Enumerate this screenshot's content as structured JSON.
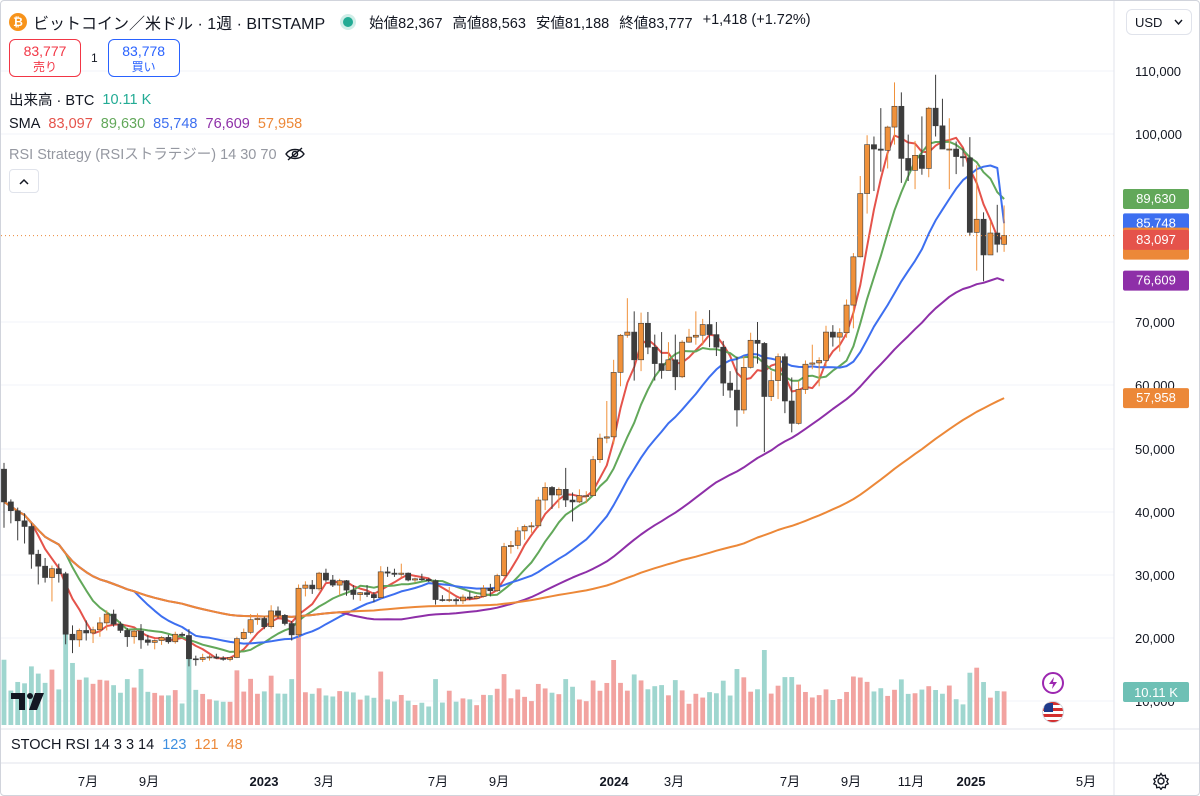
{
  "header": {
    "coin_icon_glyph": "₿",
    "title": "ビットコイン／米ドル · 1週 · BITSTAMP",
    "open_label": "始値",
    "open": "82,367",
    "high_label": "高値",
    "high": "88,563",
    "low_label": "安値",
    "low": "81,188",
    "close_label": "終値",
    "close": "83,777",
    "change": "+1,418 (+1.72%)"
  },
  "trade": {
    "sell_price": "83,777",
    "sell_label": "売り",
    "spread": "1",
    "buy_price": "83,778",
    "buy_label": "買い"
  },
  "currency": {
    "label": "USD"
  },
  "legend": {
    "volume_label": "出来高 · BTC",
    "volume_value": "10.11 K",
    "sma_label": "SMA",
    "sma_values": [
      "83,097",
      "89,630",
      "85,748",
      "76,609",
      "57,958"
    ],
    "rsi_label": "RSI Strategy (RSIストラテジー) 14 30 70",
    "stoch_label": "STOCH RSI 14 3 3 14",
    "stoch_values": [
      "123",
      "121",
      "48"
    ]
  },
  "colors": {
    "up": "#f0913a",
    "down": "#3c3c3c",
    "sma5": "#e5534b",
    "sma10": "#62a85a",
    "sma20": "#3d6ff0",
    "sma50": "#8e2fa8",
    "sma100": "#ec8838",
    "vol_up": "#f2a3a0",
    "vol_down": "#9fd6cf"
  },
  "chart_data": {
    "type": "candlestick",
    "symbol": "BTC/USD",
    "interval": "1W",
    "exchange": "BITSTAMP",
    "y_axis": {
      "labels": [
        "110,000",
        "100,000",
        "70,000",
        "60,000",
        "50,000",
        "40,000",
        "30,000",
        "20,000",
        "10,000"
      ],
      "ylim": [
        8000,
        115000
      ]
    },
    "x_axis": {
      "labels": [
        "7月",
        "9月",
        "2023",
        "3月",
        "7月",
        "9月",
        "2024",
        "3月",
        "7月",
        "9月",
        "11月",
        "2025",
        "5月"
      ]
    },
    "candles": [
      [
        46800,
        47800,
        37500,
        41600
      ],
      [
        41600,
        42000,
        38200,
        40200
      ],
      [
        40200,
        40700,
        35500,
        38600
      ],
      [
        38600,
        39800,
        35000,
        37700
      ],
      [
        37700,
        38200,
        31000,
        33300
      ],
      [
        33300,
        34000,
        28500,
        31400
      ],
      [
        31400,
        32700,
        28800,
        29600
      ],
      [
        29600,
        31500,
        25800,
        31000
      ],
      [
        31000,
        31800,
        28800,
        30200
      ],
      [
        30200,
        30500,
        19000,
        20600
      ],
      [
        20600,
        22000,
        17600,
        19700
      ],
      [
        19700,
        21500,
        18600,
        21200
      ],
      [
        21200,
        22800,
        19600,
        20800
      ],
      [
        20800,
        21800,
        19200,
        21300
      ],
      [
        21300,
        23300,
        20200,
        22400
      ],
      [
        22400,
        24400,
        21200,
        23800
      ],
      [
        23800,
        24500,
        21800,
        22200
      ],
      [
        22200,
        22600,
        20800,
        21200
      ],
      [
        21200,
        21600,
        18600,
        20200
      ],
      [
        20200,
        21300,
        19100,
        21100
      ],
      [
        21100,
        22200,
        18300,
        19700
      ],
      [
        19700,
        20500,
        18800,
        19300
      ],
      [
        19300,
        19800,
        18200,
        19600
      ],
      [
        19600,
        20300,
        18900,
        20100
      ],
      [
        20100,
        20500,
        19100,
        19400
      ],
      [
        19400,
        21000,
        19100,
        20600
      ],
      [
        20600,
        20900,
        20200,
        20400
      ],
      [
        20400,
        21400,
        15500,
        16700
      ],
      [
        16700,
        17200,
        15600,
        16600
      ],
      [
        16600,
        17500,
        16200,
        16900
      ],
      [
        16900,
        17300,
        16400,
        17000
      ],
      [
        17000,
        17500,
        16700,
        16800
      ],
      [
        16800,
        17100,
        16400,
        16600
      ],
      [
        16600,
        17000,
        16300,
        16900
      ],
      [
        16900,
        20200,
        16800,
        19900
      ],
      [
        19900,
        21500,
        19700,
        20900
      ],
      [
        20900,
        23800,
        20600,
        22900
      ],
      [
        22900,
        23900,
        22100,
        23100
      ],
      [
        23100,
        23400,
        21400,
        21800
      ],
      [
        21800,
        25200,
        21500,
        24300
      ],
      [
        24300,
        25000,
        23100,
        23600
      ],
      [
        23600,
        23800,
        22000,
        22300
      ],
      [
        22300,
        22700,
        19600,
        20500
      ],
      [
        20500,
        28500,
        20200,
        27900
      ],
      [
        27900,
        29000,
        26600,
        28400
      ],
      [
        28400,
        29200,
        27000,
        27800
      ],
      [
        27800,
        30500,
        27500,
        30300
      ],
      [
        30300,
        31000,
        28900,
        29200
      ],
      [
        29200,
        30000,
        28100,
        28400
      ],
      [
        28400,
        29400,
        26800,
        29100
      ],
      [
        29100,
        29200,
        26700,
        27600
      ],
      [
        27600,
        28400,
        26100,
        26900
      ],
      [
        26900,
        27300,
        25900,
        27200
      ],
      [
        27200,
        28400,
        26500,
        26900
      ],
      [
        26900,
        27300,
        25700,
        26400
      ],
      [
        26400,
        31400,
        26300,
        30500
      ],
      [
        30500,
        31300,
        29700,
        30300
      ],
      [
        30300,
        31000,
        29700,
        30100
      ],
      [
        30100,
        31800,
        29600,
        30300
      ],
      [
        30300,
        30400,
        29000,
        29200
      ],
      [
        29200,
        29600,
        28800,
        29400
      ],
      [
        29400,
        30200,
        29100,
        29300
      ],
      [
        29300,
        29500,
        28900,
        29100
      ],
      [
        29100,
        29300,
        25300,
        26100
      ],
      [
        26100,
        26800,
        25800,
        26000
      ],
      [
        26000,
        28100,
        25700,
        26100
      ],
      [
        26100,
        26400,
        25300,
        25900
      ],
      [
        25900,
        26900,
        25400,
        26500
      ],
      [
        26500,
        27400,
        26000,
        26300
      ],
      [
        26300,
        26800,
        26100,
        26600
      ],
      [
        26600,
        28400,
        26400,
        27900
      ],
      [
        27900,
        28600,
        26600,
        27500
      ],
      [
        27500,
        30200,
        27300,
        29900
      ],
      [
        29900,
        35100,
        29700,
        34500
      ],
      [
        34500,
        35400,
        33400,
        34700
      ],
      [
        34700,
        37600,
        34100,
        37000
      ],
      [
        37000,
        38000,
        35600,
        37700
      ],
      [
        37700,
        38400,
        36700,
        37800
      ],
      [
        37800,
        42400,
        37500,
        41900
      ],
      [
        41900,
        44700,
        40300,
        43900
      ],
      [
        43900,
        44100,
        40500,
        42700
      ],
      [
        42700,
        43900,
        40600,
        43600
      ],
      [
        43600,
        47000,
        40800,
        41900
      ],
      [
        41900,
        43100,
        38500,
        41600
      ],
      [
        41600,
        43600,
        41400,
        42600
      ],
      [
        42600,
        43300,
        41400,
        42600
      ],
      [
        42600,
        48900,
        42600,
        48300
      ],
      [
        48300,
        52400,
        47800,
        51700
      ],
      [
        51700,
        57500,
        50900,
        51900
      ],
      [
        51900,
        64000,
        50800,
        62000
      ],
      [
        62000,
        68100,
        59800,
        67900
      ],
      [
        67900,
        73800,
        67500,
        68400
      ],
      [
        68400,
        71700,
        60700,
        64000
      ],
      [
        64000,
        71500,
        62200,
        69800
      ],
      [
        69800,
        71600,
        64900,
        66000
      ],
      [
        66000,
        68000,
        60700,
        63400
      ],
      [
        63400,
        68400,
        61000,
        62300
      ],
      [
        62300,
        66800,
        62300,
        64000
      ],
      [
        64000,
        68000,
        59200,
        61300
      ],
      [
        61300,
        67100,
        61100,
        66800
      ],
      [
        66800,
        68900,
        66700,
        67600
      ],
      [
        67600,
        71700,
        66400,
        67900
      ],
      [
        67900,
        70500,
        66300,
        69600
      ],
      [
        69600,
        71900,
        66000,
        68000
      ],
      [
        68000,
        70000,
        64600,
        66000
      ],
      [
        66000,
        67000,
        58300,
        60300
      ],
      [
        60300,
        62200,
        58000,
        59200
      ],
      [
        59200,
        64500,
        53500,
        56100
      ],
      [
        56100,
        64600,
        55500,
        62800
      ],
      [
        62800,
        68300,
        62600,
        67100
      ],
      [
        67100,
        70000,
        63400,
        66600
      ],
      [
        66600,
        66800,
        49500,
        58200
      ],
      [
        58200,
        62200,
        57500,
        60700
      ],
      [
        60700,
        65000,
        57800,
        64500
      ],
      [
        64500,
        65000,
        55600,
        57500
      ],
      [
        57500,
        61200,
        52600,
        54000
      ],
      [
        54000,
        60600,
        53800,
        59300
      ],
      [
        59300,
        63900,
        58600,
        63300
      ],
      [
        63300,
        66400,
        62500,
        63500
      ],
      [
        63500,
        64400,
        59800,
        63900
      ],
      [
        63900,
        69400,
        62900,
        68400
      ],
      [
        68400,
        69500,
        66100,
        67600
      ],
      [
        67600,
        69000,
        65300,
        68300
      ],
      [
        68300,
        73600,
        67500,
        72700
      ],
      [
        72700,
        81000,
        69000,
        80400
      ],
      [
        80400,
        93300,
        80300,
        90500
      ],
      [
        90500,
        99800,
        87300,
        98300
      ],
      [
        98300,
        99600,
        90900,
        97600
      ],
      [
        97600,
        104100,
        94000,
        97400
      ],
      [
        97400,
        101300,
        94500,
        101100
      ],
      [
        101100,
        108200,
        98300,
        104400
      ],
      [
        104400,
        106600,
        92200,
        96100
      ],
      [
        96100,
        99900,
        92500,
        94200
      ],
      [
        94200,
        98900,
        91200,
        96600
      ],
      [
        96600,
        102800,
        93500,
        94500
      ],
      [
        94500,
        104300,
        93100,
        104100
      ],
      [
        104100,
        109400,
        99600,
        101300
      ],
      [
        101300,
        105600,
        97800,
        97600
      ],
      [
        97600,
        102500,
        91200,
        97600
      ],
      [
        97600,
        98800,
        93600,
        96400
      ],
      [
        96400,
        97700,
        94800,
        96200
      ],
      [
        96200,
        99500,
        83800,
        84300
      ],
      [
        84300,
        95000,
        78200,
        86400
      ],
      [
        86400,
        87500,
        76500,
        80700
      ],
      [
        80700,
        86000,
        81000,
        84200
      ],
      [
        84200,
        88700,
        81100,
        82400
      ],
      [
        82400,
        88600,
        81200,
        83800
      ]
    ],
    "series": [
      {
        "name": "SMA",
        "values": [
          "83,097",
          "89,630",
          "85,748",
          "76,609",
          "57,958"
        ]
      }
    ],
    "volume_last": "10.11 K"
  }
}
